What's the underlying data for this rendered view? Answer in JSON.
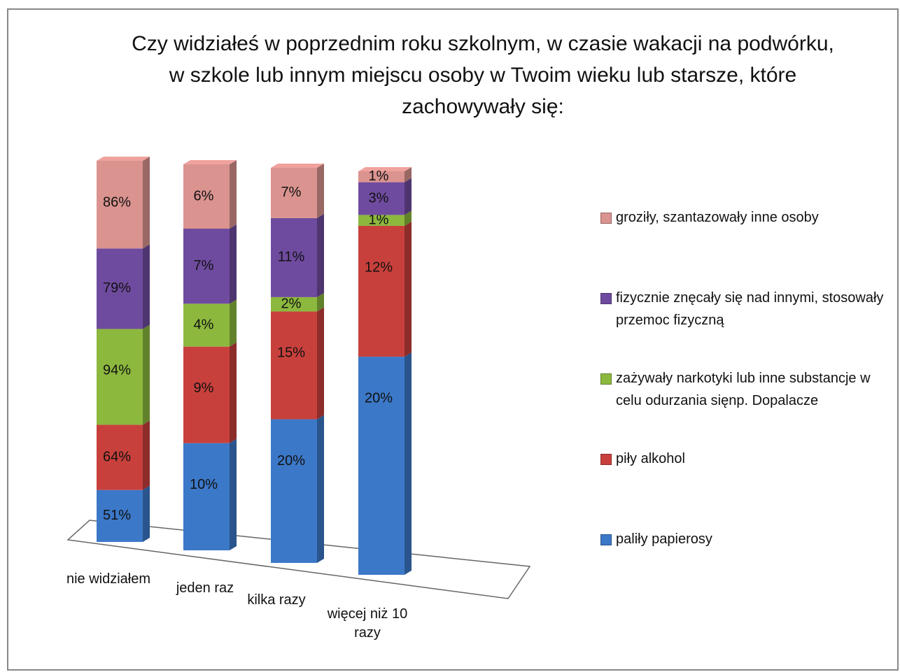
{
  "chart_data": {
    "type": "bar",
    "stacked_percent": true,
    "three_d": true,
    "title": "Czy widziałeś w poprzednim roku szkolnym, w czasie wakacji na podwórku, w szkole lub innym miejscu osoby w Twoim wieku lub starsze, które  zachowywały się:",
    "categories": [
      "nie widziałem",
      "jeden raz",
      "kilka razy",
      "więcej niż 10 razy"
    ],
    "legend": "right",
    "series": [
      {
        "name": "paliły papierosy",
        "color": "#3c78c8",
        "values": [
          51,
          10,
          20,
          20
        ],
        "value_labels": [
          "51%",
          "10%",
          "20%",
          "20%"
        ]
      },
      {
        "name": "piły alkohol",
        "color": "#c8403c",
        "values": [
          64,
          9,
          15,
          12
        ],
        "value_labels": [
          "64%",
          "9%",
          "15%",
          "12%"
        ]
      },
      {
        "name": "zażywały narkotyki lub inne substancje w celu odurzania sięnp. Dopalacze",
        "color": "#8cb83e",
        "values": [
          94,
          4,
          2,
          1
        ],
        "value_labels": [
          "94%",
          "4%",
          "2%",
          "1%"
        ]
      },
      {
        "name": "fizycznie znęcały się nad innymi, stosowały przemoc fizyczną",
        "color": "#6f4b9f",
        "values": [
          79,
          7,
          11,
          3
        ],
        "value_labels": [
          "79%",
          "7%",
          "11%",
          "3%"
        ]
      },
      {
        "name": "groziły, szantazowały inne osoby",
        "color": "#da938f",
        "values": [
          86,
          6,
          7,
          1
        ],
        "value_labels": [
          "86%",
          "6%",
          "7%",
          "1%"
        ]
      }
    ]
  }
}
